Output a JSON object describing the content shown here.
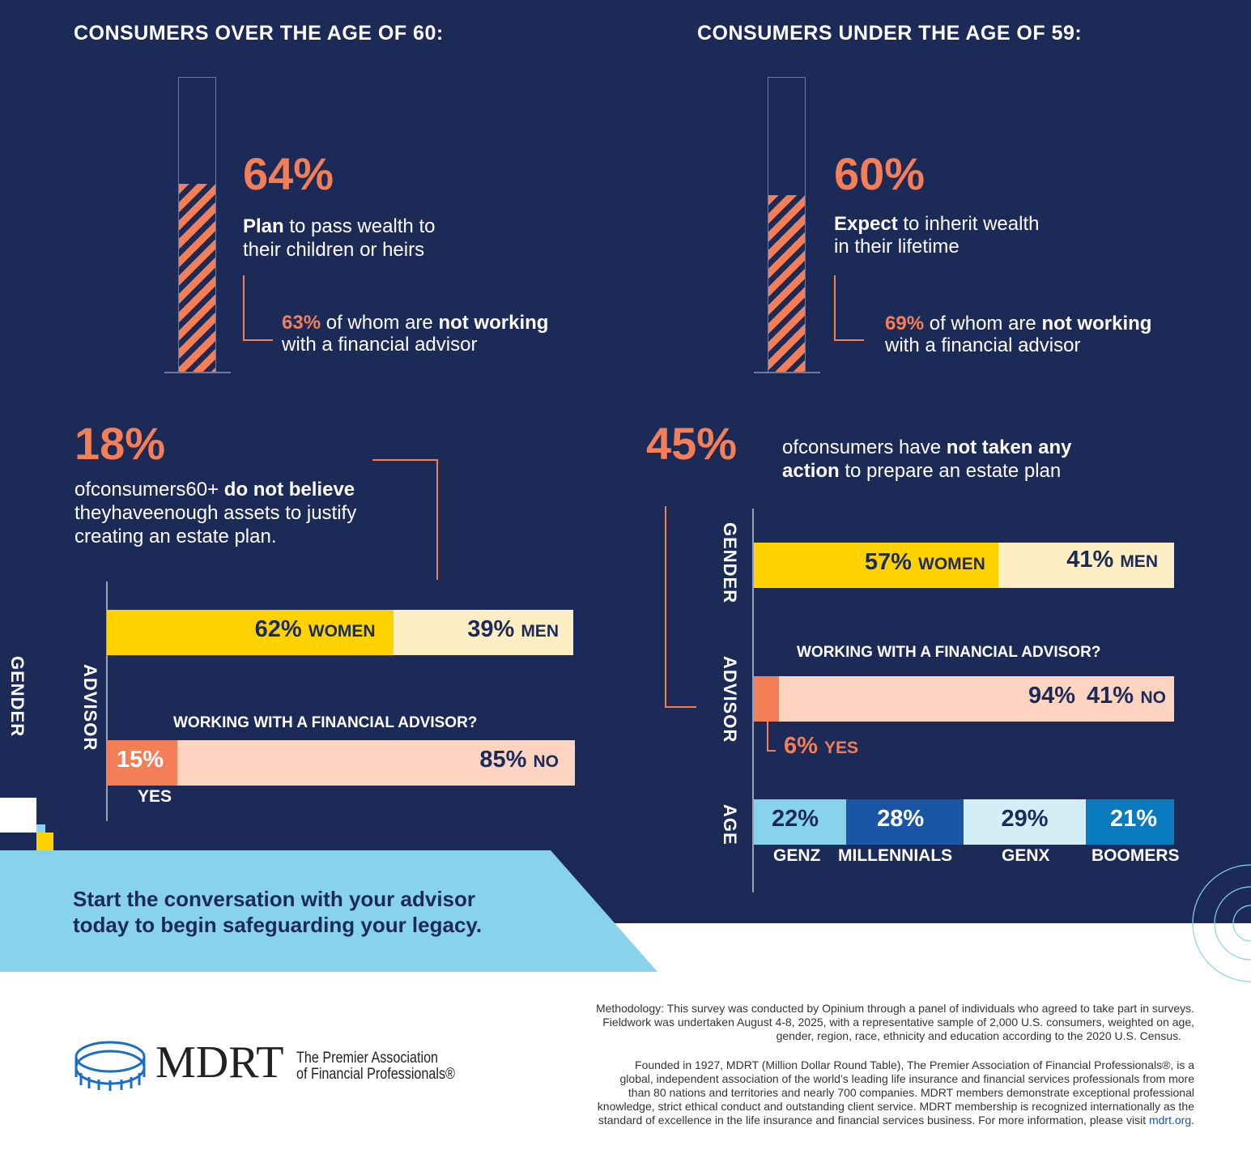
{
  "colors": {
    "navy": "#1c2a58",
    "orange": "#f47f57",
    "yellow": "#ffd200",
    "cream": "#fdeec3",
    "peach": "#fed4c1",
    "light_blue": "#87d3ec"
  },
  "left": {
    "heading": "CONSUMERS OVER THE AGE OF 60:",
    "stat": "64%",
    "stat_bold": "Plan",
    "stat_rest": " to pass wealth to their children or heirs",
    "sub_pct": "63%",
    "sub_mid": " of whom are ",
    "sub_bold": "not working",
    "sub_rest": "with a financial advisor",
    "stat2": "18%",
    "stat2_text1": "ofconsumers60+ ",
    "stat2_bold": "do not believe",
    "stat2_text2": "theyhaveenough assets to justify creating an estate plan.",
    "gender_axis": "GENDER",
    "advisor_axis": "ADVISOR",
    "question": "WORKING WITH A FINANCIAL ADVISOR?"
  },
  "right": {
    "heading": "CONSUMERS UNDER THE AGE OF 59:",
    "stat": "60%",
    "stat_bold": "Expect",
    "stat_rest": " to inherit wealth in their lifetime",
    "sub_pct": "69%",
    "sub_mid": " of whom are ",
    "sub_bold": "not working",
    "sub_rest": "with a financial advisor",
    "stat2": "45%",
    "stat2_text1": "ofconsumers have ",
    "stat2_bold": "not taken any action",
    "stat2_text2": " to prepare an estate plan",
    "gender_axis": "GENDER",
    "advisor_axis": "ADVISOR",
    "age_axis": "AGE",
    "question": "WORKING WITH A FINANCIAL ADVISOR?"
  },
  "chart_data": [
    {
      "type": "bar",
      "title": "CONSUMERS OVER THE AGE OF 60: Plan to pass wealth",
      "values": [
        64
      ],
      "unit": "%"
    },
    {
      "type": "bar",
      "title": "CONSUMERS UNDER THE AGE OF 59: Expect to inherit",
      "values": [
        60
      ],
      "unit": "%"
    },
    {
      "type": "bar",
      "stacked": true,
      "categories": [
        "WOMEN",
        "MEN"
      ],
      "values": [
        62,
        39
      ],
      "labels": [
        "62%",
        "39%"
      ]
    },
    {
      "type": "bar",
      "stacked": true,
      "categories": [
        "YES",
        "NO"
      ],
      "values": [
        15,
        85
      ],
      "labels": [
        "15%",
        "85%"
      ]
    },
    {
      "type": "bar",
      "stacked": true,
      "categories": [
        "WOMEN",
        "MEN"
      ],
      "values": [
        57,
        41
      ],
      "labels": [
        "57%",
        "41%"
      ]
    },
    {
      "type": "bar",
      "stacked": true,
      "categories": [
        "YES",
        "NO"
      ],
      "values": [
        6,
        94
      ],
      "labels": [
        "6%",
        "94%"
      ],
      "overlap_label": "41%"
    },
    {
      "type": "bar",
      "stacked": true,
      "categories": [
        "GENZ",
        "MILLENNIALS",
        "GENX",
        "BOOMERS"
      ],
      "values": [
        22,
        28,
        29,
        21
      ],
      "labels": [
        "22%",
        "28%",
        "29%",
        "21%"
      ]
    }
  ],
  "cta": {
    "line1": "Start the conversation with your advisor",
    "line2": "today to begin safeguarding your legacy."
  },
  "logo": {
    "name": "MDRT",
    "tagline1": "The Premier Association",
    "tagline2": "of Financial Professionals®"
  },
  "footer": {
    "methodology": [
      "Methodology: This survey was conducted by Opinium through a panel of individuals who agreed to take part in surveys.",
      "Fieldwork was undertaken August 4-8, 2025, with a representative sample of 2,000 U.S. consumers, weighted on age,",
      "gender, region, race, ethnicity and education according to the 2020 U.S. Census."
    ],
    "about": [
      "Founded in 1927, MDRT (Million Dollar Round Table), The Premier Association of Financial Professionals®, is a",
      "global, independent association of the world’s leading life insurance and financial services professionals from more",
      "than 80 nations and territories and nearly 700 companies. MDRT members demonstrate exceptional professional",
      "knowledge, strict ethical conduct and outstanding client service. MDRT membership is recognized internationally as the",
      "standard of excellence in the life insurance and financial services business. For more information, please visit "
    ],
    "link": "mdrt.org",
    "period": "."
  }
}
